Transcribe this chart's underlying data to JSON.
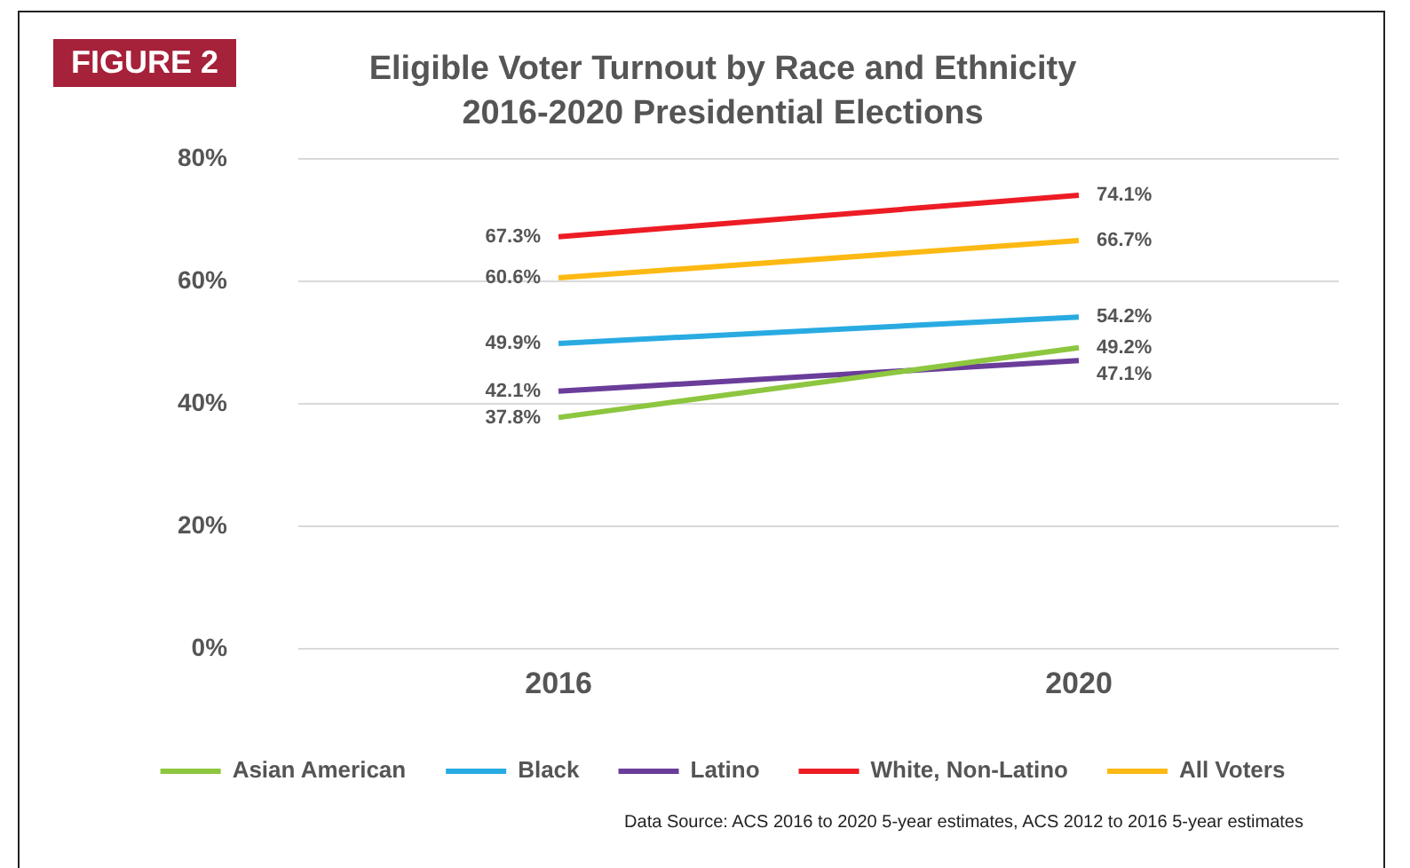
{
  "chart_data": {
    "type": "line",
    "title": "Eligible Voter Turnout by Race and Ethnicity",
    "subtitle": "2016-2020 Presidential Elections",
    "categories": [
      "2016",
      "2020"
    ],
    "series": [
      {
        "name": "Asian American",
        "color": "#8dc63f",
        "values": [
          37.8,
          49.2
        ],
        "value_labels": [
          "37.8%",
          "49.2%"
        ]
      },
      {
        "name": "Black",
        "color": "#29abe2",
        "values": [
          49.9,
          54.2
        ],
        "value_labels": [
          "49.9%",
          "54.2%"
        ]
      },
      {
        "name": "Latino",
        "color": "#6a3d9a",
        "values": [
          42.1,
          47.1
        ],
        "value_labels": [
          "42.1%",
          "47.1%"
        ]
      },
      {
        "name": "White, Non-Latino",
        "color": "#ed1c24",
        "values": [
          67.3,
          74.1
        ],
        "value_labels": [
          "67.3%",
          "74.1%"
        ]
      },
      {
        "name": "All Voters",
        "color": "#fdb913",
        "values": [
          60.6,
          66.7
        ],
        "value_labels": [
          "60.6%",
          "66.7%"
        ]
      }
    ],
    "ylim": [
      0,
      80
    ],
    "yticks": [
      {
        "value": 0,
        "label": "0%"
      },
      {
        "value": 20,
        "label": "20%"
      },
      {
        "value": 40,
        "label": "40%"
      },
      {
        "value": 60,
        "label": "60%"
      },
      {
        "value": 80,
        "label": "80%"
      }
    ],
    "grid": "y",
    "legend": "bottom",
    "marker": "none",
    "line_style": "solid",
    "annotations": [
      "FIGURE 2",
      "Data Source: ACS 2016 to 2020 5-year estimates, ACS 2012 to 2016 5-year estimates"
    ]
  }
}
